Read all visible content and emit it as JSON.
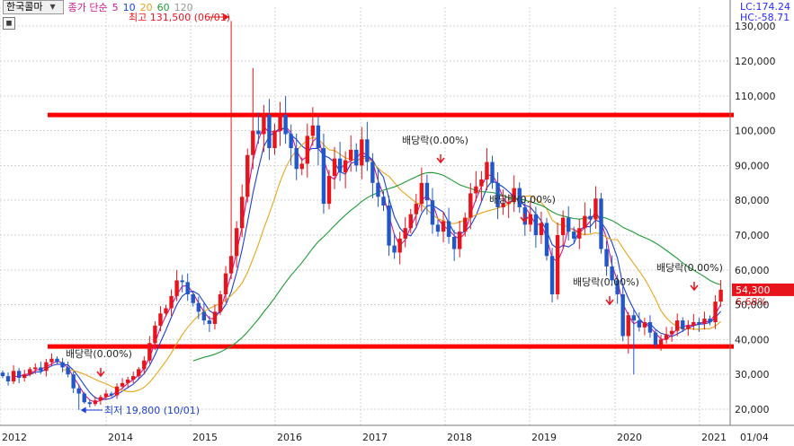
{
  "legend": {
    "stock_name": "한국콜마",
    "ma_type": "종가 단순",
    "ma_periods": [
      "5",
      "10",
      "20",
      "60",
      "120"
    ],
    "ma_colors": [
      "#d0168e",
      "#1b3fd6",
      "#e7a51b",
      "#1f9a36",
      "#999999"
    ]
  },
  "lc_label": "LC:174.24",
  "hc_label": "HC:-58.71",
  "chart_data": {
    "type": "candlestick",
    "y_ticks": [
      "20,000",
      "30,000",
      "40,000",
      "50,000",
      "60,000",
      "70,000",
      "80,000",
      "90,000",
      "100,000",
      "110,000",
      "120,000",
      "130,000"
    ],
    "x_ticks": [
      "2012",
      "2014",
      "2015",
      "2016",
      "2017",
      "2018",
      "2019",
      "2020",
      "2021",
      "01/04"
    ],
    "annotations": {
      "high": "최고 131,500 (06/01)",
      "low": "최저 19,800 (10/01)",
      "dividend": "배당락(0.00%)"
    },
    "current_price": "54,300",
    "current_change": "6.68%",
    "support_level": 38000,
    "resistance_level": 104500,
    "colors": {
      "up": "#e8141b",
      "down": "#2257c9",
      "level": "#ff0000"
    }
  }
}
